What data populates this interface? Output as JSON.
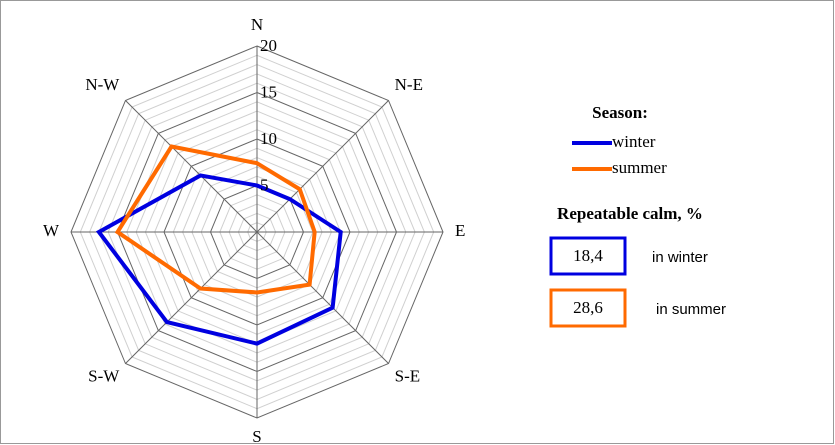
{
  "chart_data": {
    "type": "radar",
    "categories": [
      "N",
      "N-E",
      "E",
      "S-E",
      "S",
      "S-W",
      "W",
      "N-W"
    ],
    "series": [
      {
        "name": "winter",
        "color": "#0000e0",
        "values": [
          5,
          5,
          9,
          11.5,
          12,
          13.7,
          17,
          8.6
        ]
      },
      {
        "name": "summer",
        "color": "#ff6a00",
        "values": [
          7.4,
          6.5,
          6.2,
          8,
          6.5,
          8.6,
          15,
          13
        ]
      }
    ],
    "ylim": [
      0,
      20
    ],
    "yticks": [
      0,
      5,
      10,
      15,
      20
    ],
    "grid": true,
    "legend_title": "Season:",
    "calm": {
      "title": "Repeatable calm, %",
      "items": [
        {
          "value": 18.4,
          "value_label": "18,4",
          "label": "in winter",
          "color": "#0000e0"
        },
        {
          "value": 28.6,
          "value_label": "28,6",
          "label": "in summer",
          "color": "#ff6a00"
        }
      ]
    }
  }
}
